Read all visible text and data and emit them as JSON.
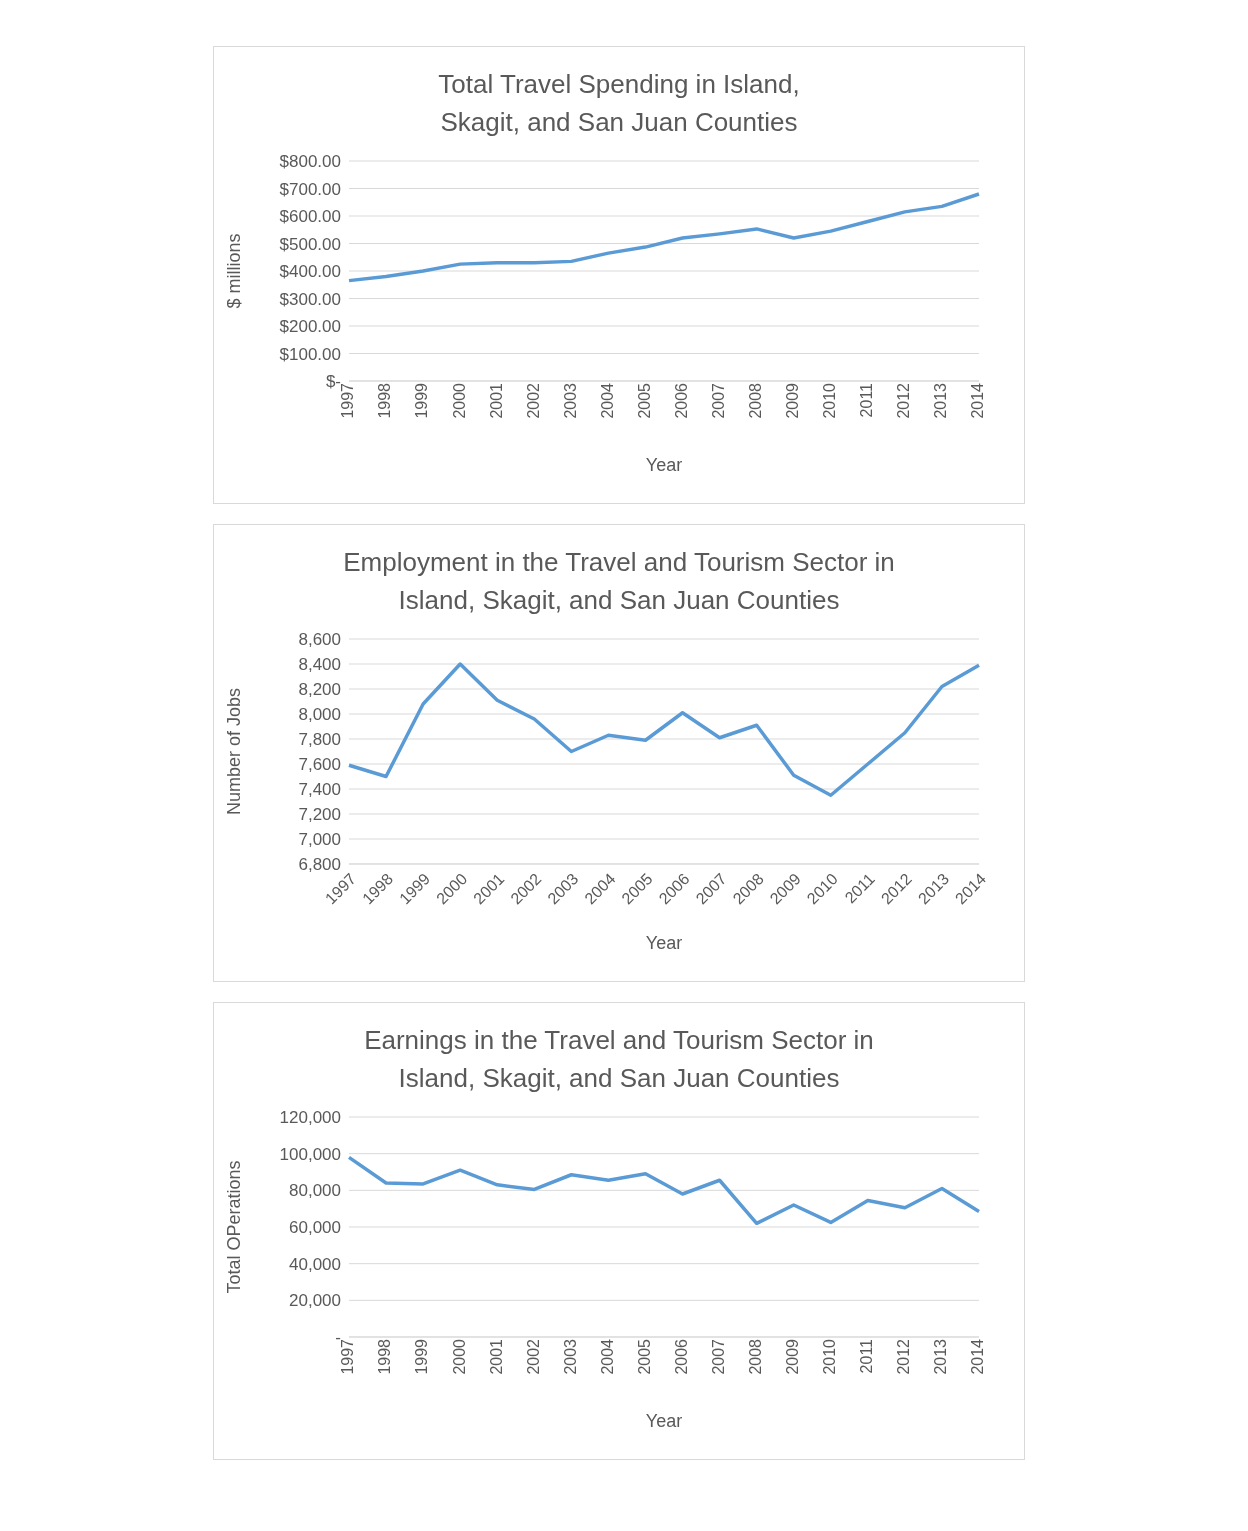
{
  "chart_data": [
    {
      "type": "line",
      "title": "Total Travel Spending in Island, Skagit, and San Juan Counties",
      "xlabel": "Year",
      "ylabel": "$ millions",
      "categories": [
        "1997",
        "1998",
        "1999",
        "2000",
        "2001",
        "2002",
        "2003",
        "2004",
        "2005",
        "2006",
        "2007",
        "2008",
        "2009",
        "2010",
        "2011",
        "2012",
        "2013",
        "2014"
      ],
      "series": [
        {
          "color": "#5b9bd5",
          "values": [
            365,
            380,
            400,
            425,
            430,
            430,
            435,
            465,
            487,
            520,
            535,
            553,
            520,
            545,
            580,
            615,
            635,
            680
          ]
        }
      ],
      "ylim": [
        0,
        800
      ],
      "yticks": [
        {
          "value": 0,
          "label": "$-"
        },
        {
          "value": 100,
          "label": "$100.00"
        },
        {
          "value": 200,
          "label": "$200.00"
        },
        {
          "value": 300,
          "label": "$300.00"
        },
        {
          "value": 400,
          "label": "$400.00"
        },
        {
          "value": 500,
          "label": "$500.00"
        },
        {
          "value": 600,
          "label": "$600.00"
        },
        {
          "value": 700,
          "label": "$700.00"
        },
        {
          "value": 800,
          "label": "$800.00"
        }
      ],
      "grid": "y",
      "legend": false,
      "marker": "none",
      "line_style": "solid"
    },
    {
      "type": "line",
      "title": "Employment in the Travel and Tourism Sector in Island, Skagit, and San Juan Counties",
      "xlabel": "Year",
      "ylabel": "Number of Jobs",
      "categories": [
        "1997",
        "1998",
        "1999",
        "2000",
        "2001",
        "2002",
        "2003",
        "2004",
        "2005",
        "2006",
        "2007",
        "2008",
        "2009",
        "2010",
        "2011",
        "2012",
        "2013",
        "2014"
      ],
      "series": [
        {
          "color": "#5b9bd5",
          "values": [
            7590,
            7500,
            8080,
            8400,
            8110,
            7960,
            7700,
            7830,
            7790,
            8010,
            7810,
            7910,
            7510,
            7350,
            7600,
            7850,
            8220,
            8390
          ]
        }
      ],
      "ylim": [
        6800,
        8600
      ],
      "yticks": [
        {
          "value": 6800,
          "label": "6,800"
        },
        {
          "value": 7000,
          "label": "7,000"
        },
        {
          "value": 7200,
          "label": "7,200"
        },
        {
          "value": 7400,
          "label": "7,400"
        },
        {
          "value": 7600,
          "label": "7,600"
        },
        {
          "value": 7800,
          "label": "7,800"
        },
        {
          "value": 8000,
          "label": "8,000"
        },
        {
          "value": 8200,
          "label": "8,200"
        },
        {
          "value": 8400,
          "label": "8,400"
        },
        {
          "value": 8600,
          "label": "8,600"
        }
      ],
      "grid": "y",
      "legend": false,
      "marker": "none",
      "line_style": "solid"
    },
    {
      "type": "line",
      "title": "Earnings in the Travel and Tourism Sector in Island, Skagit, and San Juan Counties",
      "xlabel": "Year",
      "ylabel": "Total OPerations",
      "categories": [
        "1997",
        "1998",
        "1999",
        "2000",
        "2001",
        "2002",
        "2003",
        "2004",
        "2005",
        "2006",
        "2007",
        "2008",
        "2009",
        "2010",
        "2011",
        "2012",
        "2013",
        "2014"
      ],
      "series": [
        {
          "color": "#5b9bd5",
          "values": [
            98000,
            84000,
            83500,
            91000,
            83000,
            80500,
            88500,
            85500,
            89000,
            78000,
            85500,
            62000,
            72000,
            62500,
            74500,
            70500,
            81000,
            68500
          ]
        }
      ],
      "ylim": [
        0,
        120000
      ],
      "yticks": [
        {
          "value": 0,
          "label": "-"
        },
        {
          "value": 20000,
          "label": "20,000"
        },
        {
          "value": 40000,
          "label": "40,000"
        },
        {
          "value": 60000,
          "label": "60,000"
        },
        {
          "value": 80000,
          "label": "80,000"
        },
        {
          "value": 100000,
          "label": "100,000"
        },
        {
          "value": 120000,
          "label": "120,000"
        }
      ],
      "grid": "y",
      "legend": false,
      "marker": "none",
      "line_style": "solid"
    }
  ]
}
